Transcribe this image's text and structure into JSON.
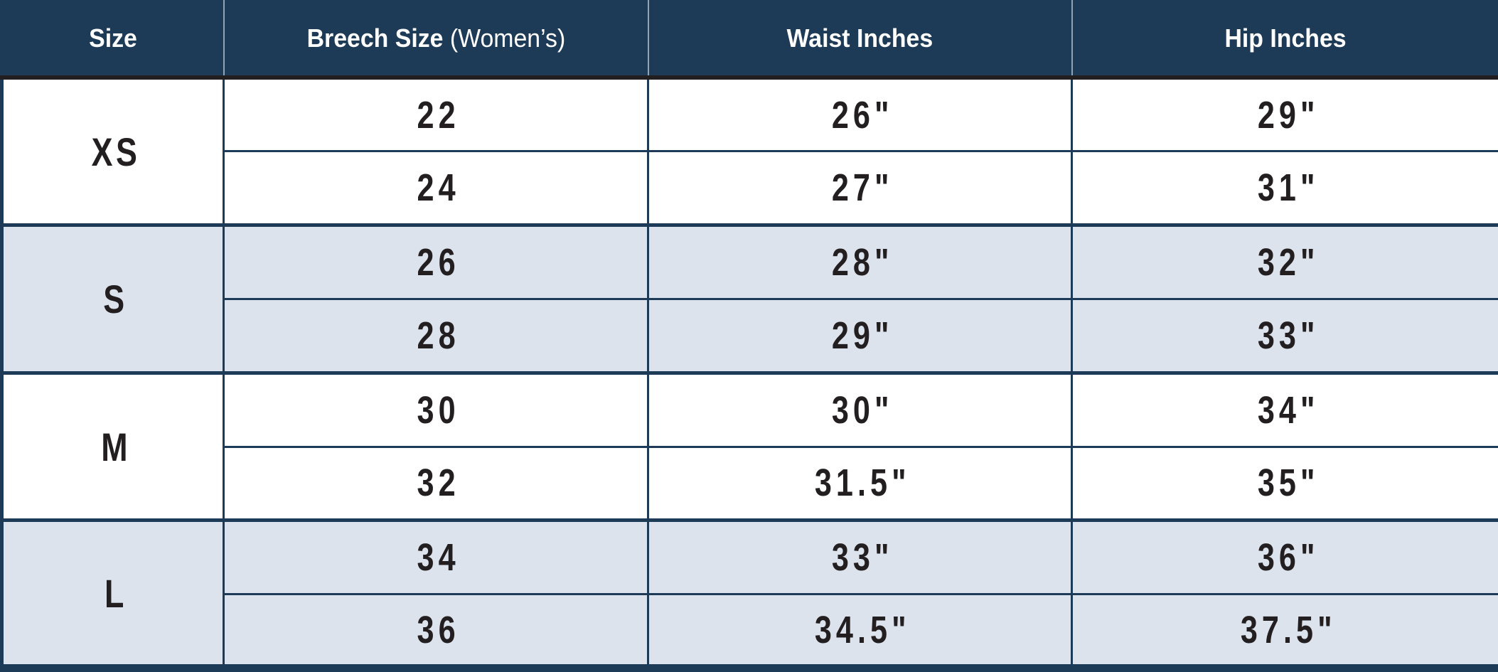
{
  "table": {
    "columns": [
      {
        "label": "Size",
        "sublabel": ""
      },
      {
        "label": "Breech Size",
        "sublabel": "(Women’s)"
      },
      {
        "label": "Waist Inches",
        "sublabel": ""
      },
      {
        "label": "Hip Inches",
        "sublabel": ""
      }
    ],
    "groups": [
      {
        "size": "XS",
        "rows": [
          {
            "breech": "22",
            "waist": "26\"",
            "hip": "29\""
          },
          {
            "breech": "24",
            "waist": "27\"",
            "hip": "31\""
          }
        ]
      },
      {
        "size": "S",
        "rows": [
          {
            "breech": "26",
            "waist": "28\"",
            "hip": "32\""
          },
          {
            "breech": "28",
            "waist": "29\"",
            "hip": "33\""
          }
        ]
      },
      {
        "size": "M",
        "rows": [
          {
            "breech": "30",
            "waist": "30\"",
            "hip": "34\""
          },
          {
            "breech": "32",
            "waist": "31.5\"",
            "hip": "35\""
          }
        ]
      },
      {
        "size": "L",
        "rows": [
          {
            "breech": "34",
            "waist": "33\"",
            "hip": "36\""
          },
          {
            "breech": "36",
            "waist": "34.5\"",
            "hip": "37.5\""
          }
        ]
      }
    ],
    "colors": {
      "header_bg": "#1d3a57",
      "header_text": "#ffffff",
      "header_underline": "#231f20",
      "header_divider": "#93a2b0",
      "grid_navy": "#1d3a57",
      "row_bg": "#ffffff",
      "row_alt_bg": "#dce3ed",
      "text": "#231f20"
    }
  },
  "chart_data": {
    "type": "table",
    "title": "Breech sizing chart (Women's)",
    "columns": [
      "Size",
      "Breech Size (Women's)",
      "Waist Inches",
      "Hip Inches"
    ],
    "rows": [
      [
        "XS",
        "22",
        "26\"",
        "29\""
      ],
      [
        "XS",
        "24",
        "27\"",
        "31\""
      ],
      [
        "S",
        "26",
        "28\"",
        "32\""
      ],
      [
        "S",
        "28",
        "29\"",
        "33\""
      ],
      [
        "M",
        "30",
        "30\"",
        "34\""
      ],
      [
        "M",
        "32",
        "31.5\"",
        "35\""
      ],
      [
        "L",
        "34",
        "33\"",
        "36\""
      ],
      [
        "L",
        "36",
        "34.5\"",
        "37.5\""
      ]
    ],
    "layout": {
      "size_column_rowspan": 2,
      "group_banding": [
        "white",
        "light-blue",
        "white",
        "light-blue"
      ],
      "grid": "navy lines; thick between groups, thin between sub-rows"
    }
  }
}
